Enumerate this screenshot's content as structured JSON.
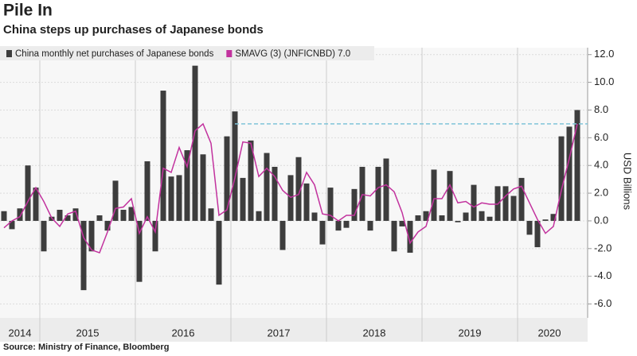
{
  "chart_data": {
    "type": "bar_line",
    "title": "Pile In",
    "subtitle": "China steps up purchases of Japanese bonds",
    "source": "Source: Ministry of Finance, Bloomberg",
    "y_axis_label": "USD Billions",
    "categories": [
      "2014",
      "2014",
      "2014",
      "2014",
      "2014",
      "2015",
      "2015",
      "2015",
      "2015",
      "2015",
      "2015",
      "2015",
      "2015",
      "2015",
      "2015",
      "2015",
      "2015",
      "2016",
      "2016",
      "2016",
      "2016",
      "2016",
      "2016",
      "2016",
      "2016",
      "2016",
      "2016",
      "2016",
      "2016",
      "2017",
      "2017",
      "2017",
      "2017",
      "2017",
      "2017",
      "2017",
      "2017",
      "2017",
      "2017",
      "2017",
      "2017",
      "2018",
      "2018",
      "2018",
      "2018",
      "2018",
      "2018",
      "2018",
      "2018",
      "2018",
      "2018",
      "2018",
      "2018",
      "2019",
      "2019",
      "2019",
      "2019",
      "2019",
      "2019",
      "2019",
      "2019",
      "2019",
      "2019",
      "2019",
      "2019",
      "2020",
      "2020",
      "2020",
      "2020",
      "2020",
      "2020",
      "2020",
      "2020"
    ],
    "series": [
      {
        "name": "China monthly net purchases of Japanese bonds",
        "type": "bar",
        "color": "#3d3d3d",
        "values": [
          0.7,
          -0.6,
          0.9,
          4.0,
          2.4,
          -2.2,
          0.3,
          0.8,
          0.4,
          0.9,
          -5.0,
          -2.2,
          0.4,
          -0.7,
          2.9,
          0.8,
          1.0,
          -4.4,
          4.3,
          -2.2,
          9.4,
          3.2,
          3.3,
          5.1,
          11.2,
          4.8,
          0.9,
          -4.6,
          6.1,
          7.9,
          3.1,
          5.8,
          0.7,
          4.9,
          3.9,
          -2.1,
          3.3,
          4.6,
          2.7,
          0.6,
          -1.7,
          2.4,
          -0.7,
          -0.5,
          2.3,
          3.9,
          -0.7,
          3.9,
          4.5,
          -2.2,
          -0.4,
          -2.3,
          0.4,
          0.7,
          3.7,
          0.4,
          3.6,
          -0.1,
          0.6,
          2.6,
          0.7,
          0.3,
          2.5,
          2.5,
          1.8,
          3.1,
          -1.0,
          -1.9,
          0.1,
          0.5,
          6.1,
          6.8,
          8.0
        ]
      },
      {
        "name": "SMAVG (3) (JNFICNBD) 7.0",
        "type": "line",
        "color": "#c2329e",
        "values": [
          -0.5,
          0.0,
          0.3,
          1.4,
          2.4,
          1.4,
          0.2,
          -0.4,
          0.5,
          0.7,
          -1.2,
          -2.1,
          -2.3,
          -0.8,
          0.9,
          1.0,
          1.6,
          -0.9,
          0.3,
          -0.8,
          3.8,
          3.5,
          5.3,
          3.9,
          6.5,
          7.0,
          5.6,
          0.4,
          0.8,
          3.1,
          5.7,
          5.6,
          3.2,
          3.8,
          3.2,
          2.2,
          1.7,
          1.9,
          3.5,
          2.6,
          0.5,
          0.4,
          0.0,
          0.4,
          0.4,
          1.9,
          1.8,
          2.4,
          2.6,
          2.1,
          0.6,
          -1.6,
          -0.8,
          -0.4,
          1.6,
          1.6,
          2.6,
          1.3,
          1.4,
          1.0,
          1.3,
          1.2,
          1.2,
          1.8,
          2.3,
          2.5,
          1.3,
          0.1,
          -0.9,
          -0.4,
          2.2,
          4.5,
          7.0
        ]
      }
    ],
    "reference_line": {
      "value": 7.0,
      "color": "#7fc4d8"
    },
    "ylim": [
      -7,
      12.5
    ],
    "yticks": [
      {
        "value": 12,
        "label": "12.0"
      },
      {
        "value": 10,
        "label": "10.0"
      },
      {
        "value": 8,
        "label": "8.0"
      },
      {
        "value": 6,
        "label": "6.0"
      },
      {
        "value": 4,
        "label": "4.0"
      },
      {
        "value": 2,
        "label": "2.0"
      },
      {
        "value": 0,
        "label": "0.0"
      },
      {
        "value": -2,
        "label": "-2.0"
      },
      {
        "value": -4,
        "label": "-4.0"
      },
      {
        "value": -6,
        "label": "-6.0"
      }
    ],
    "grid": true
  }
}
